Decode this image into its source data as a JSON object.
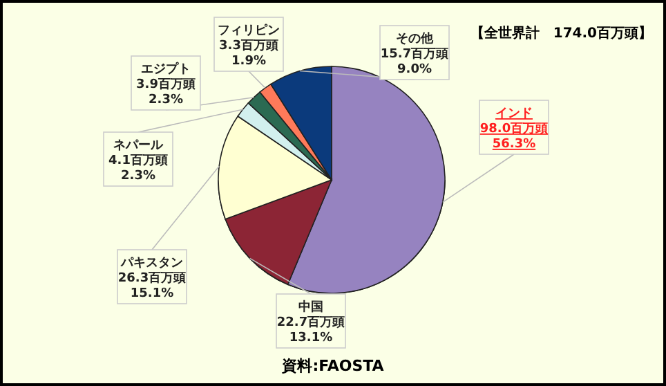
{
  "chart_data": {
    "type": "pie",
    "title": "【全世界計　174.0百万頭】",
    "categories": [
      "インド",
      "中国",
      "パキスタン",
      "ネパール",
      "エジプト",
      "フィリピン",
      "その他"
    ],
    "values": [
      98.0,
      22.7,
      26.3,
      4.1,
      3.9,
      3.3,
      15.7
    ],
    "colors": [
      "#9683c0",
      "#8c2535",
      "#ffffd2",
      "#d2f0ee",
      "#2b6a52",
      "#ff7a5a",
      "#0b3a7c"
    ],
    "value_labels": [
      "98.0百万頭\n56.3%",
      "22.7百万頭\n13.1%",
      "26.3百万頭\n15.1%",
      "4.1百万頭\n2.3%",
      "3.9百万頭\n2.3%",
      "3.3百万頭\n1.9%",
      "15.7百万頭\n9.0%"
    ],
    "annotations": [
      "資料:FAOSTA"
    ],
    "legend": false
  }
}
